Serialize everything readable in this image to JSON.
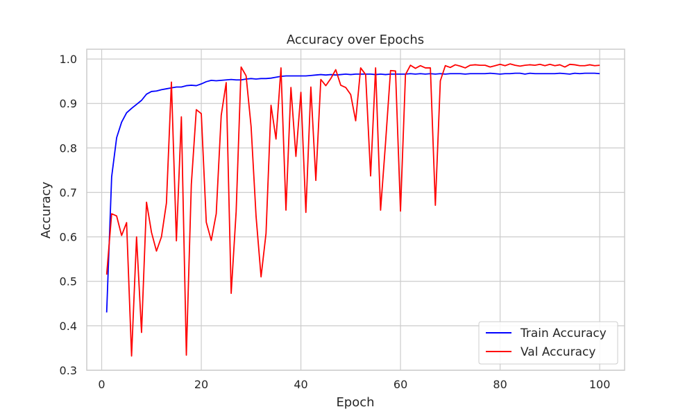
{
  "chart_data": {
    "type": "line",
    "title": "Accuracy over Epochs",
    "xlabel": "Epoch",
    "ylabel": "Accuracy",
    "xlim": [
      -3,
      105
    ],
    "ylim": [
      0.3,
      1.022
    ],
    "xticks": [
      0,
      20,
      40,
      60,
      80,
      100
    ],
    "yticks": [
      0.3,
      0.4,
      0.5,
      0.6,
      0.7,
      0.8,
      0.9,
      1.0
    ],
    "xtick_labels": [
      "0",
      "20",
      "40",
      "60",
      "80",
      "100"
    ],
    "ytick_labels": [
      "0.3",
      "0.4",
      "0.5",
      "0.6",
      "0.7",
      "0.8",
      "0.9",
      "1.0"
    ],
    "grid": true,
    "legend_position": "bottom-right",
    "x": [
      1,
      2,
      3,
      4,
      5,
      6,
      7,
      8,
      9,
      10,
      11,
      12,
      13,
      14,
      15,
      16,
      17,
      18,
      19,
      20,
      21,
      22,
      23,
      24,
      25,
      26,
      27,
      28,
      29,
      30,
      31,
      32,
      33,
      34,
      35,
      36,
      37,
      38,
      39,
      40,
      41,
      42,
      43,
      44,
      45,
      46,
      47,
      48,
      49,
      50,
      51,
      52,
      53,
      54,
      55,
      56,
      57,
      58,
      59,
      60,
      61,
      62,
      63,
      64,
      65,
      66,
      67,
      68,
      69,
      70,
      71,
      72,
      73,
      74,
      75,
      76,
      77,
      78,
      79,
      80,
      81,
      82,
      83,
      84,
      85,
      86,
      87,
      88,
      89,
      90,
      91,
      92,
      93,
      94,
      95,
      96,
      97,
      98,
      99,
      100
    ],
    "series": [
      {
        "name": "Train Accuracy",
        "color": "#0000ff",
        "values": [
          0.43,
          0.735,
          0.823,
          0.858,
          0.879,
          0.889,
          0.898,
          0.907,
          0.921,
          0.927,
          0.928,
          0.931,
          0.933,
          0.935,
          0.937,
          0.937,
          0.94,
          0.941,
          0.94,
          0.944,
          0.949,
          0.952,
          0.951,
          0.952,
          0.953,
          0.954,
          0.953,
          0.953,
          0.955,
          0.956,
          0.955,
          0.956,
          0.956,
          0.957,
          0.959,
          0.961,
          0.962,
          0.962,
          0.962,
          0.962,
          0.962,
          0.963,
          0.964,
          0.965,
          0.964,
          0.965,
          0.964,
          0.965,
          0.966,
          0.965,
          0.966,
          0.966,
          0.966,
          0.966,
          0.965,
          0.966,
          0.965,
          0.966,
          0.966,
          0.966,
          0.966,
          0.967,
          0.966,
          0.967,
          0.966,
          0.967,
          0.966,
          0.967,
          0.966,
          0.967,
          0.967,
          0.967,
          0.966,
          0.967,
          0.967,
          0.967,
          0.967,
          0.968,
          0.967,
          0.966,
          0.967,
          0.967,
          0.968,
          0.968,
          0.966,
          0.968,
          0.967,
          0.967,
          0.967,
          0.967,
          0.967,
          0.968,
          0.967,
          0.966,
          0.968,
          0.967,
          0.968,
          0.968,
          0.968,
          0.967
        ]
      },
      {
        "name": "Val Accuracy",
        "color": "#ff0000",
        "values": [
          0.515,
          0.652,
          0.647,
          0.603,
          0.632,
          0.332,
          0.6,
          0.385,
          0.678,
          0.61,
          0.568,
          0.6,
          0.676,
          0.948,
          0.591,
          0.87,
          0.334,
          0.718,
          0.886,
          0.877,
          0.633,
          0.592,
          0.652,
          0.873,
          0.947,
          0.473,
          0.657,
          0.982,
          0.962,
          0.848,
          0.646,
          0.51,
          0.608,
          0.896,
          0.82,
          0.98,
          0.66,
          0.936,
          0.781,
          0.925,
          0.655,
          0.937,
          0.727,
          0.954,
          0.94,
          0.956,
          0.976,
          0.941,
          0.936,
          0.92,
          0.861,
          0.98,
          0.965,
          0.737,
          0.98,
          0.66,
          0.812,
          0.974,
          0.973,
          0.658,
          0.965,
          0.986,
          0.979,
          0.985,
          0.98,
          0.98,
          0.671,
          0.951,
          0.985,
          0.981,
          0.987,
          0.984,
          0.98,
          0.986,
          0.987,
          0.986,
          0.986,
          0.982,
          0.985,
          0.988,
          0.985,
          0.989,
          0.986,
          0.984,
          0.986,
          0.987,
          0.986,
          0.988,
          0.985,
          0.988,
          0.985,
          0.987,
          0.982,
          0.988,
          0.987,
          0.985,
          0.985,
          0.987,
          0.985,
          0.986
        ]
      }
    ]
  }
}
